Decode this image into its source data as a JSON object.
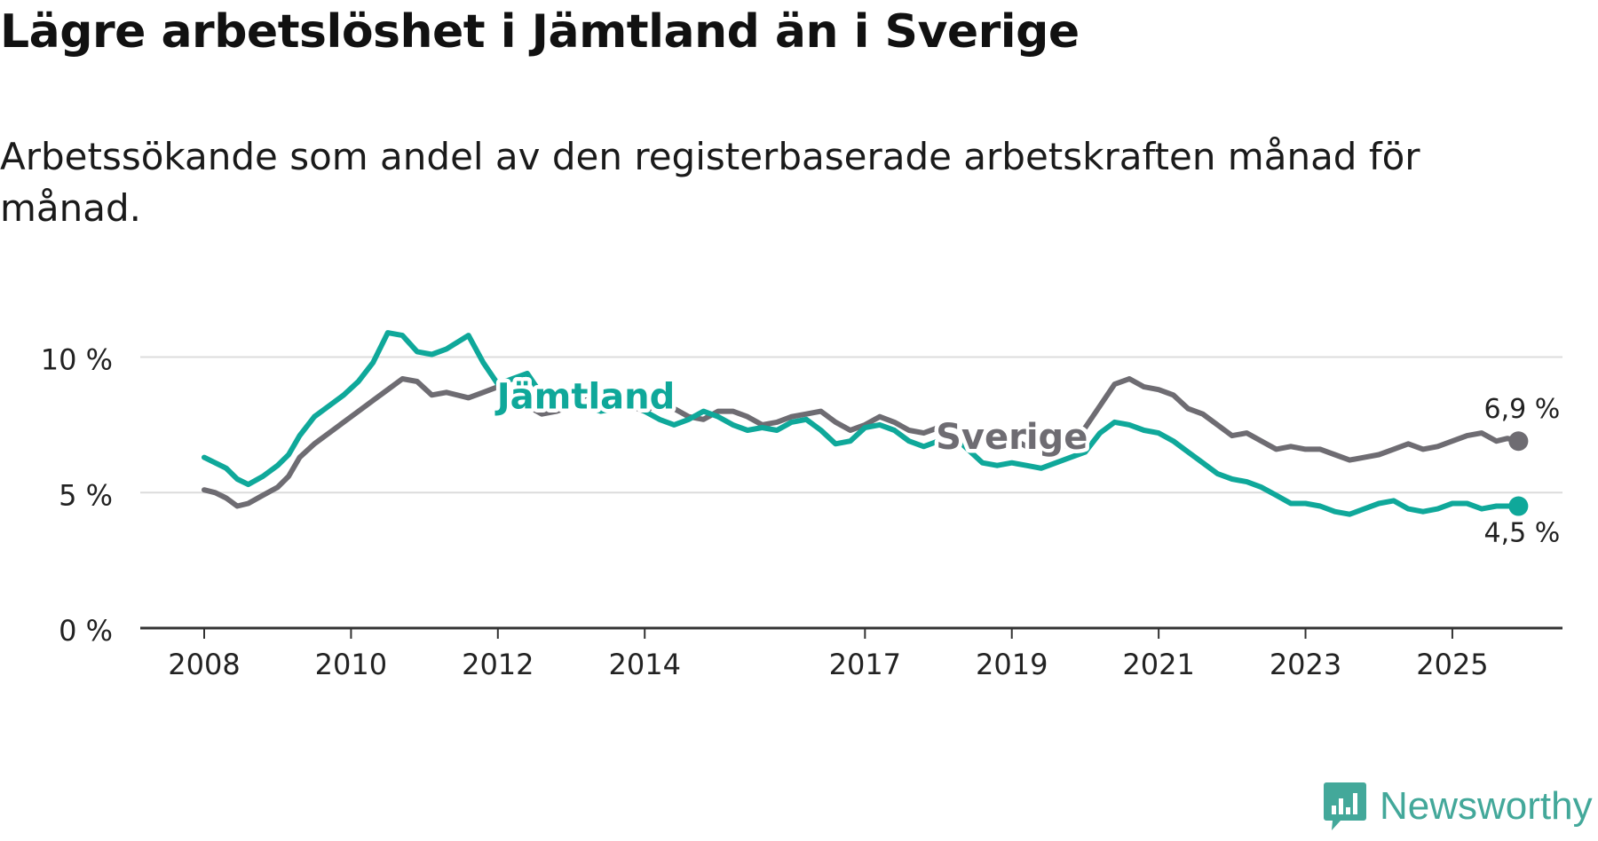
{
  "title": "Lägre arbetslöshet i Jämtland än i Sverige",
  "subtitle": "Arbetssökande som andel av den registerbaserade arbetskraften månad för månad.",
  "brand": {
    "name": "Newsworthy"
  },
  "colors": {
    "jamtland": "#0fa89a",
    "sverige": "#6e6c72",
    "grid": "#dcdcdc",
    "axis": "#333333",
    "text": "#222222"
  },
  "chart_data": {
    "type": "line",
    "title": "Lägre arbetslöshet i Jämtland än i Sverige",
    "xlabel": "",
    "ylabel": "",
    "ylim": [
      0,
      11
    ],
    "xlim": [
      2008.0,
      2026.5
    ],
    "yticks": [
      {
        "value": 0,
        "label": "0 %"
      },
      {
        "value": 5,
        "label": "5 %"
      },
      {
        "value": 10,
        "label": "10 %"
      }
    ],
    "xticks": [
      {
        "value": 2008,
        "label": "2008"
      },
      {
        "value": 2010,
        "label": "2010"
      },
      {
        "value": 2012,
        "label": "2012"
      },
      {
        "value": 2014,
        "label": "2014"
      },
      {
        "value": 2017,
        "label": "2017"
      },
      {
        "value": 2019,
        "label": "2019"
      },
      {
        "value": 2021,
        "label": "2021"
      },
      {
        "value": 2023,
        "label": "2023"
      },
      {
        "value": 2025,
        "label": "2025"
      }
    ],
    "series": [
      {
        "name": "Sverige",
        "label": "Sverige",
        "end_label": "6,9 %",
        "points": [
          [
            2008.0,
            5.1
          ],
          [
            2008.15,
            5.0
          ],
          [
            2008.3,
            4.8
          ],
          [
            2008.45,
            4.5
          ],
          [
            2008.6,
            4.6
          ],
          [
            2008.8,
            4.9
          ],
          [
            2009.0,
            5.2
          ],
          [
            2009.15,
            5.6
          ],
          [
            2009.3,
            6.3
          ],
          [
            2009.5,
            6.8
          ],
          [
            2009.7,
            7.2
          ],
          [
            2009.9,
            7.6
          ],
          [
            2010.1,
            8.0
          ],
          [
            2010.3,
            8.4
          ],
          [
            2010.5,
            8.8
          ],
          [
            2010.7,
            9.2
          ],
          [
            2010.9,
            9.1
          ],
          [
            2011.1,
            8.6
          ],
          [
            2011.3,
            8.7
          ],
          [
            2011.6,
            8.5
          ],
          [
            2011.8,
            8.7
          ],
          [
            2012.0,
            8.9
          ],
          [
            2012.2,
            8.6
          ],
          [
            2012.4,
            8.2
          ],
          [
            2012.6,
            7.9
          ],
          [
            2012.8,
            8.0
          ],
          [
            2013.0,
            8.2
          ],
          [
            2013.2,
            8.6
          ],
          [
            2013.4,
            8.8
          ],
          [
            2013.6,
            8.6
          ],
          [
            2013.8,
            8.2
          ],
          [
            2014.0,
            8.0
          ],
          [
            2014.2,
            8.3
          ],
          [
            2014.4,
            8.1
          ],
          [
            2014.6,
            7.8
          ],
          [
            2014.8,
            7.7
          ],
          [
            2015.0,
            8.0
          ],
          [
            2015.2,
            8.0
          ],
          [
            2015.4,
            7.8
          ],
          [
            2015.6,
            7.5
          ],
          [
            2015.8,
            7.6
          ],
          [
            2016.0,
            7.8
          ],
          [
            2016.2,
            7.9
          ],
          [
            2016.4,
            8.0
          ],
          [
            2016.6,
            7.6
          ],
          [
            2016.8,
            7.3
          ],
          [
            2017.0,
            7.5
          ],
          [
            2017.2,
            7.8
          ],
          [
            2017.4,
            7.6
          ],
          [
            2017.6,
            7.3
          ],
          [
            2017.8,
            7.2
          ],
          [
            2018.0,
            7.4
          ],
          [
            2018.2,
            7.5
          ],
          [
            2018.4,
            7.1
          ],
          [
            2018.6,
            6.9
          ],
          [
            2018.8,
            6.9
          ],
          [
            2019.0,
            7.0
          ],
          [
            2019.2,
            6.7
          ],
          [
            2019.4,
            6.8
          ],
          [
            2019.6,
            6.6
          ],
          [
            2019.8,
            6.8
          ],
          [
            2020.0,
            7.4
          ],
          [
            2020.2,
            8.2
          ],
          [
            2020.4,
            9.0
          ],
          [
            2020.6,
            9.2
          ],
          [
            2020.8,
            8.9
          ],
          [
            2021.0,
            8.8
          ],
          [
            2021.2,
            8.6
          ],
          [
            2021.4,
            8.1
          ],
          [
            2021.6,
            7.9
          ],
          [
            2021.8,
            7.5
          ],
          [
            2022.0,
            7.1
          ],
          [
            2022.2,
            7.2
          ],
          [
            2022.4,
            6.9
          ],
          [
            2022.6,
            6.6
          ],
          [
            2022.8,
            6.7
          ],
          [
            2023.0,
            6.6
          ],
          [
            2023.2,
            6.6
          ],
          [
            2023.4,
            6.4
          ],
          [
            2023.6,
            6.2
          ],
          [
            2023.8,
            6.3
          ],
          [
            2024.0,
            6.4
          ],
          [
            2024.2,
            6.6
          ],
          [
            2024.4,
            6.8
          ],
          [
            2024.6,
            6.6
          ],
          [
            2024.8,
            6.7
          ],
          [
            2025.0,
            6.9
          ],
          [
            2025.2,
            7.1
          ],
          [
            2025.4,
            7.2
          ],
          [
            2025.6,
            6.9
          ],
          [
            2025.75,
            7.0
          ],
          [
            2025.9,
            6.9
          ]
        ]
      },
      {
        "name": "Jämtland",
        "label": "Jämtland",
        "end_label": "4,5 %",
        "points": [
          [
            2008.0,
            6.3
          ],
          [
            2008.15,
            6.1
          ],
          [
            2008.3,
            5.9
          ],
          [
            2008.45,
            5.5
          ],
          [
            2008.6,
            5.3
          ],
          [
            2008.8,
            5.6
          ],
          [
            2009.0,
            6.0
          ],
          [
            2009.15,
            6.4
          ],
          [
            2009.3,
            7.1
          ],
          [
            2009.5,
            7.8
          ],
          [
            2009.7,
            8.2
          ],
          [
            2009.9,
            8.6
          ],
          [
            2010.1,
            9.1
          ],
          [
            2010.3,
            9.8
          ],
          [
            2010.5,
            10.9
          ],
          [
            2010.7,
            10.8
          ],
          [
            2010.9,
            10.2
          ],
          [
            2011.1,
            10.1
          ],
          [
            2011.3,
            10.3
          ],
          [
            2011.6,
            10.8
          ],
          [
            2011.8,
            9.8
          ],
          [
            2012.0,
            9.0
          ],
          [
            2012.2,
            9.2
          ],
          [
            2012.4,
            9.4
          ],
          [
            2012.6,
            8.6
          ],
          [
            2012.8,
            8.3
          ],
          [
            2013.0,
            8.5
          ],
          [
            2013.2,
            8.2
          ],
          [
            2013.4,
            8.0
          ],
          [
            2013.6,
            8.1
          ],
          [
            2013.8,
            8.3
          ],
          [
            2014.0,
            8.0
          ],
          [
            2014.2,
            7.7
          ],
          [
            2014.4,
            7.5
          ],
          [
            2014.6,
            7.7
          ],
          [
            2014.8,
            8.0
          ],
          [
            2015.0,
            7.8
          ],
          [
            2015.2,
            7.5
          ],
          [
            2015.4,
            7.3
          ],
          [
            2015.6,
            7.4
          ],
          [
            2015.8,
            7.3
          ],
          [
            2016.0,
            7.6
          ],
          [
            2016.2,
            7.7
          ],
          [
            2016.4,
            7.3
          ],
          [
            2016.6,
            6.8
          ],
          [
            2016.8,
            6.9
          ],
          [
            2017.0,
            7.4
          ],
          [
            2017.2,
            7.5
          ],
          [
            2017.4,
            7.3
          ],
          [
            2017.6,
            6.9
          ],
          [
            2017.8,
            6.7
          ],
          [
            2018.0,
            6.9
          ],
          [
            2018.2,
            7.1
          ],
          [
            2018.4,
            6.6
          ],
          [
            2018.6,
            6.1
          ],
          [
            2018.8,
            6.0
          ],
          [
            2019.0,
            6.1
          ],
          [
            2019.2,
            6.0
          ],
          [
            2019.4,
            5.9
          ],
          [
            2019.6,
            6.1
          ],
          [
            2019.8,
            6.3
          ],
          [
            2020.0,
            6.5
          ],
          [
            2020.2,
            7.2
          ],
          [
            2020.4,
            7.6
          ],
          [
            2020.6,
            7.5
          ],
          [
            2020.8,
            7.3
          ],
          [
            2021.0,
            7.2
          ],
          [
            2021.2,
            6.9
          ],
          [
            2021.4,
            6.5
          ],
          [
            2021.6,
            6.1
          ],
          [
            2021.8,
            5.7
          ],
          [
            2022.0,
            5.5
          ],
          [
            2022.2,
            5.4
          ],
          [
            2022.4,
            5.2
          ],
          [
            2022.6,
            4.9
          ],
          [
            2022.8,
            4.6
          ],
          [
            2023.0,
            4.6
          ],
          [
            2023.2,
            4.5
          ],
          [
            2023.4,
            4.3
          ],
          [
            2023.6,
            4.2
          ],
          [
            2023.8,
            4.4
          ],
          [
            2024.0,
            4.6
          ],
          [
            2024.2,
            4.7
          ],
          [
            2024.4,
            4.4
          ],
          [
            2024.6,
            4.3
          ],
          [
            2024.8,
            4.4
          ],
          [
            2025.0,
            4.6
          ],
          [
            2025.2,
            4.6
          ],
          [
            2025.4,
            4.4
          ],
          [
            2025.6,
            4.5
          ],
          [
            2025.9,
            4.5
          ]
        ]
      }
    ]
  }
}
